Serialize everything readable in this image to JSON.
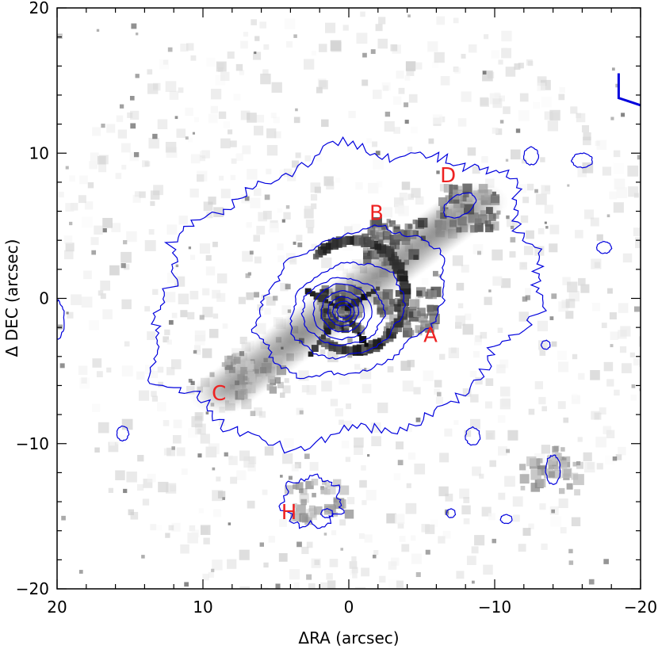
{
  "chart_data": {
    "type": "heatmap",
    "title": "",
    "xlabel": "ΔRA (arcsec)",
    "ylabel": "Δ DEC (arcsec)",
    "xlim": [
      20,
      -20
    ],
    "ylim": [
      -20,
      20
    ],
    "x_ticks": [
      {
        "value": 20,
        "label": "20"
      },
      {
        "value": 10,
        "label": "10"
      },
      {
        "value": 0,
        "label": "0"
      },
      {
        "value": -10,
        "label": "−10"
      },
      {
        "value": -20,
        "label": "−20"
      }
    ],
    "y_ticks": [
      {
        "value": -20,
        "label": "−20"
      },
      {
        "value": -10,
        "label": "−10"
      },
      {
        "value": 0,
        "label": "0"
      },
      {
        "value": 10,
        "label": "10"
      },
      {
        "value": 20,
        "label": "20"
      }
    ],
    "colormap": "grayscale (white = low, black = high)",
    "contour_color": "#0000dd",
    "label_color": "#ee2222",
    "annotations": [
      {
        "text": "A",
        "x": -5.6,
        "y": -2.6
      },
      {
        "text": "B",
        "x": -1.9,
        "y": 5.8
      },
      {
        "text": "C",
        "x": 8.9,
        "y": -6.6
      },
      {
        "text": "D",
        "x": -6.8,
        "y": 8.4
      },
      {
        "text": "H",
        "x": 4.1,
        "y": -14.8
      }
    ],
    "emission_features": [
      {
        "name": "core",
        "x": 0.5,
        "y": -0.8,
        "intensity": 1.0
      },
      {
        "name": "ring-A",
        "x": -4.0,
        "y": -1.0,
        "intensity": 0.95
      },
      {
        "name": "ring-B",
        "x": -3.2,
        "y": 3.8,
        "intensity": 0.9
      },
      {
        "name": "knot-D",
        "x": -8.2,
        "y": 6.2,
        "intensity": 0.85
      },
      {
        "name": "arm-C",
        "x": 6.5,
        "y": -5.2,
        "intensity": 0.6
      },
      {
        "name": "knot-H",
        "x": 2.0,
        "y": -14.0,
        "intensity": 0.5
      },
      {
        "name": "knot-SW",
        "x": -14.0,
        "y": -11.8,
        "intensity": 0.55
      }
    ]
  }
}
